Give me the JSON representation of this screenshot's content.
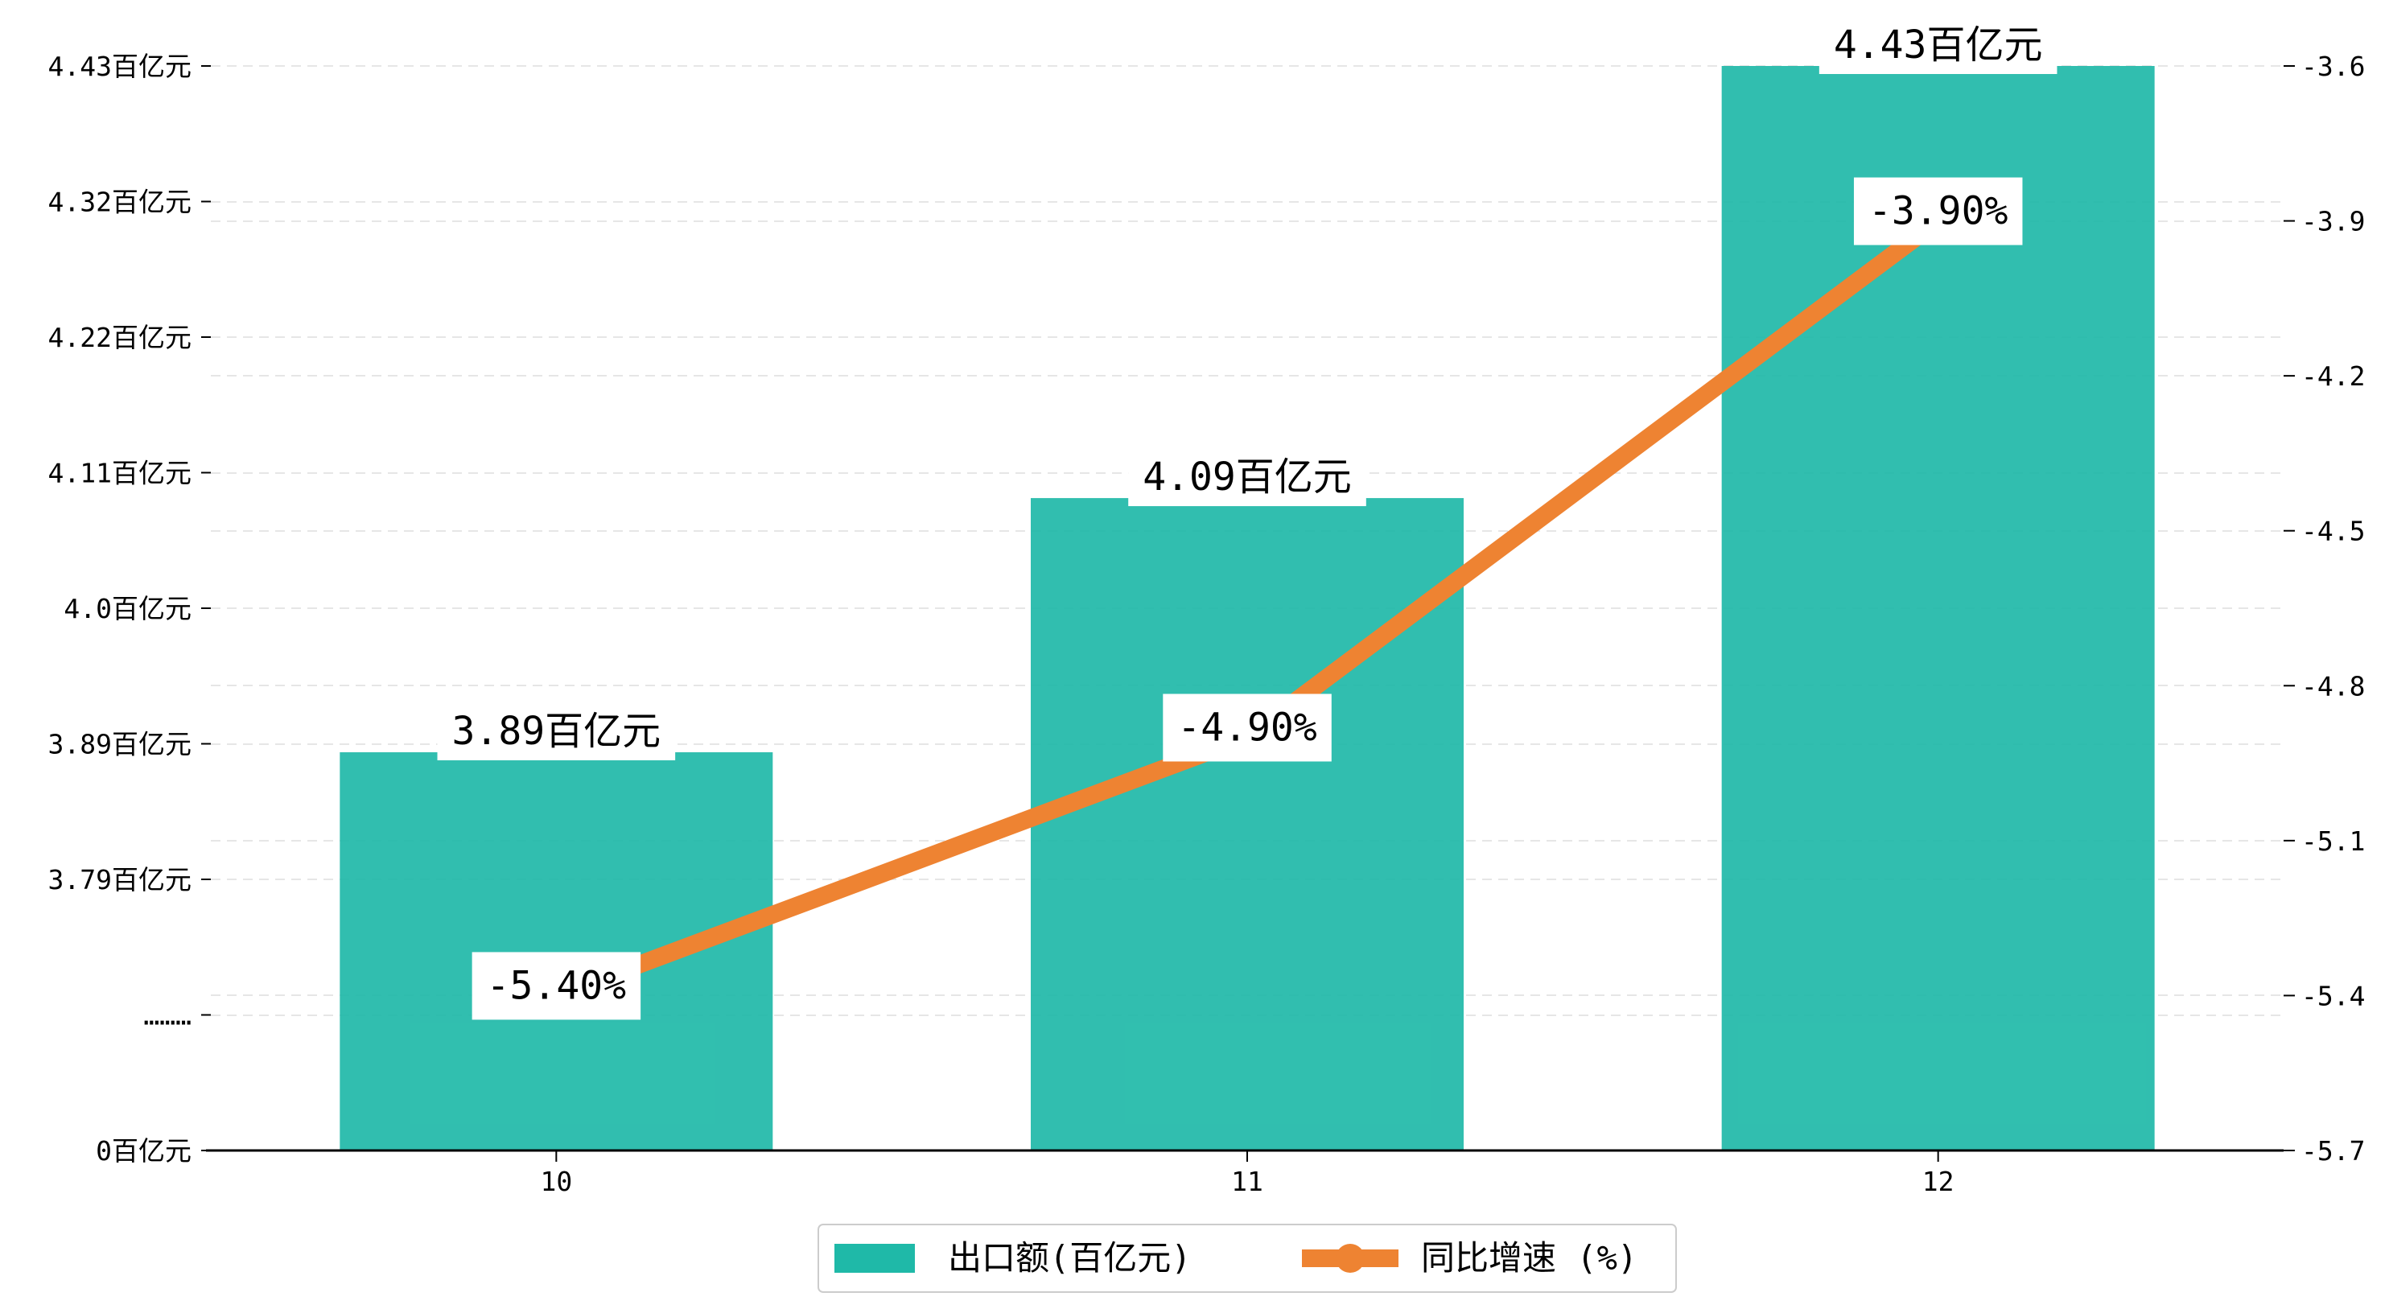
{
  "colors": {
    "bar": "#1fb9a8",
    "line": "#ee8332",
    "grid": "#e6e6e6",
    "axis": "#000000"
  },
  "chart_data": {
    "type": "bar",
    "categories": [
      "10",
      "11",
      "12"
    ],
    "series": [
      {
        "name": "出口额(百亿元)",
        "kind": "bar",
        "axis": "left",
        "values": [
          3.89,
          4.09,
          4.43
        ],
        "data_labels": [
          "3.89百亿元",
          "4.09百亿元",
          "4.43百亿元"
        ]
      },
      {
        "name": "同比增速 (%)",
        "kind": "line",
        "axis": "right",
        "values": [
          -5.4,
          -4.9,
          -3.9
        ],
        "data_labels": [
          "-5.40%",
          "-4.90%",
          "-3.90%"
        ]
      }
    ],
    "left_axis": {
      "broken": true,
      "tick_labels": [
        "0百亿元",
        "………",
        "3.79百亿元",
        "3.89百亿元",
        "4.0百亿元",
        "4.11百亿元",
        "4.22百亿元",
        "4.32百亿元",
        "4.43百亿元"
      ]
    },
    "right_axis": {
      "ylim": [
        -5.7,
        -3.6
      ],
      "ticks": [
        -5.7,
        -5.4,
        -5.1,
        -4.8,
        -4.5,
        -4.2,
        -3.9,
        -3.6
      ],
      "tick_labels": [
        "-5.7",
        "-5.4",
        "-5.1",
        "-4.8",
        "-4.5",
        "-4.2",
        "-3.9",
        "-3.6"
      ]
    },
    "grid": "horizontal dashed",
    "legend_position": "bottom-center"
  }
}
